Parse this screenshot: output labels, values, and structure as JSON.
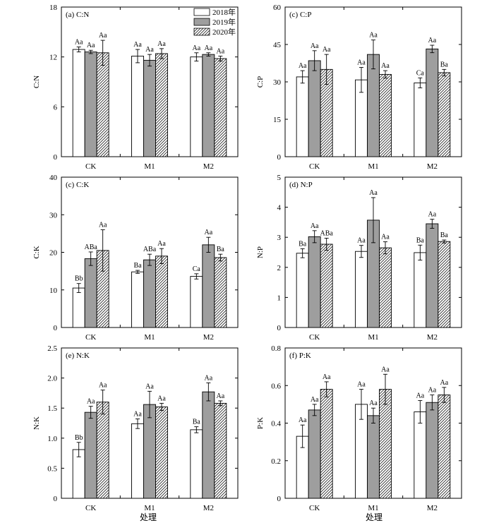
{
  "figure": {
    "legend": [
      "2018年",
      "2019年",
      "2020年"
    ],
    "x_axis_title": "处理"
  },
  "chart_data": [
    {
      "type": "bar",
      "title": "(a) C:N",
      "ylabel": "C:N",
      "categories": [
        "CK",
        "M1",
        "M2"
      ],
      "ylim": [
        0,
        18
      ],
      "yticks": [
        0,
        6,
        12,
        18
      ],
      "series": [
        {
          "name": "2018年",
          "values": [
            12.9,
            12.1,
            12.0
          ],
          "errors": [
            0.3,
            0.8,
            0.5
          ],
          "labels": [
            "Aa",
            "Aa",
            "Aa"
          ]
        },
        {
          "name": "2019年",
          "values": [
            12.6,
            11.6,
            12.3
          ],
          "errors": [
            0.2,
            0.7,
            0.2
          ],
          "labels": [
            "Aa",
            "Aa",
            "Aa"
          ]
        },
        {
          "name": "2020年",
          "values": [
            12.5,
            12.4,
            11.8
          ],
          "errors": [
            1.5,
            0.6,
            0.3
          ],
          "labels": [
            "Aa",
            "Aa",
            "Aa"
          ]
        }
      ]
    },
    {
      "type": "bar",
      "title": "(c) C:P",
      "ylabel": "C:P",
      "categories": [
        "CK",
        "M1",
        "M2"
      ],
      "ylim": [
        0,
        60
      ],
      "yticks": [
        0,
        15,
        30,
        45,
        60
      ],
      "series": [
        {
          "name": "2018年",
          "values": [
            32,
            30.8,
            29.6
          ],
          "errors": [
            2.5,
            5,
            2
          ],
          "labels": [
            "Aa",
            "Aa",
            "Ca"
          ]
        },
        {
          "name": "2019年",
          "values": [
            38.5,
            41,
            43.2
          ],
          "errors": [
            4,
            5.8,
            1.5
          ],
          "labels": [
            "Aa",
            "Aa",
            "Aa"
          ]
        },
        {
          "name": "2020年",
          "values": [
            35,
            33,
            33.7
          ],
          "errors": [
            6,
            1.5,
            1.3
          ],
          "labels": [
            "Aa",
            "Aa",
            "Ba"
          ]
        }
      ]
    },
    {
      "type": "bar",
      "title": "(c) C:K",
      "ylabel": "C:K",
      "categories": [
        "CK",
        "M1",
        "M2"
      ],
      "ylim": [
        0,
        40
      ],
      "yticks": [
        0,
        10,
        20,
        30,
        40
      ],
      "series": [
        {
          "name": "2018年",
          "values": [
            10.5,
            14.8,
            13.6
          ],
          "errors": [
            1.2,
            0.4,
            0.7
          ],
          "labels": [
            "Bb",
            "Ba",
            "Ca"
          ]
        },
        {
          "name": "2019年",
          "values": [
            18.3,
            18.0,
            22.0
          ],
          "errors": [
            1.8,
            1.5,
            2.0
          ],
          "labels": [
            "ABa",
            "ABa",
            "Aa"
          ]
        },
        {
          "name": "2020年",
          "values": [
            20.5,
            19.0,
            18.6
          ],
          "errors": [
            5.5,
            2.0,
            0.9
          ],
          "labels": [
            "Aa",
            "Aa",
            "Ba"
          ]
        }
      ]
    },
    {
      "type": "bar",
      "title": "(d) N:P",
      "ylabel": "N:P",
      "categories": [
        "CK",
        "M1",
        "M2"
      ],
      "ylim": [
        0,
        5
      ],
      "yticks": [
        0,
        1,
        2,
        3,
        4,
        5
      ],
      "series": [
        {
          "name": "2018年",
          "values": [
            2.47,
            2.53,
            2.49
          ],
          "errors": [
            0.15,
            0.2,
            0.25
          ],
          "labels": [
            "Ba",
            "Aa",
            "Ba"
          ]
        },
        {
          "name": "2019年",
          "values": [
            3.02,
            3.57,
            3.45
          ],
          "errors": [
            0.2,
            0.75,
            0.15
          ],
          "labels": [
            "Aa",
            "Aa",
            "Aa"
          ]
        },
        {
          "name": "2020年",
          "values": [
            2.77,
            2.65,
            2.86
          ],
          "errors": [
            0.2,
            0.2,
            0.05
          ],
          "labels": [
            "ABa",
            "Aa",
            "Ba"
          ]
        }
      ]
    },
    {
      "type": "bar",
      "title": "(e) N:K",
      "ylabel": "N:K",
      "categories": [
        "CK",
        "M1",
        "M2"
      ],
      "ylim": [
        0,
        2.5
      ],
      "yticks": [
        0,
        0.5,
        1.0,
        1.5,
        2.0,
        2.5
      ],
      "series": [
        {
          "name": "2018年",
          "values": [
            0.81,
            1.24,
            1.14
          ],
          "errors": [
            0.12,
            0.08,
            0.05
          ],
          "labels": [
            "Bb",
            "Aa",
            "Ba"
          ]
        },
        {
          "name": "2019年",
          "values": [
            1.43,
            1.56,
            1.77
          ],
          "errors": [
            0.1,
            0.22,
            0.15
          ],
          "labels": [
            "Aa",
            "Aa",
            "Aa"
          ]
        },
        {
          "name": "2020年",
          "values": [
            1.6,
            1.52,
            1.58
          ],
          "errors": [
            0.2,
            0.06,
            0.04
          ],
          "labels": [
            "Aa",
            "Aa",
            "Aa"
          ]
        }
      ]
    },
    {
      "type": "bar",
      "title": "(f) P:K",
      "ylabel": "P:K",
      "categories": [
        "CK",
        "M1",
        "M2"
      ],
      "ylim": [
        0,
        0.8
      ],
      "yticks": [
        0,
        0.2,
        0.4,
        0.6,
        0.8
      ],
      "series": [
        {
          "name": "2018年",
          "values": [
            0.33,
            0.5,
            0.46
          ],
          "errors": [
            0.06,
            0.08,
            0.06
          ],
          "labels": [
            "Aa",
            "Aa",
            "Aa"
          ]
        },
        {
          "name": "2019年",
          "values": [
            0.47,
            0.44,
            0.51
          ],
          "errors": [
            0.03,
            0.04,
            0.04
          ],
          "labels": [
            "Aa",
            "Aa",
            "Aa"
          ]
        },
        {
          "name": "2020年",
          "values": [
            0.58,
            0.58,
            0.55
          ],
          "errors": [
            0.04,
            0.08,
            0.04
          ],
          "labels": [
            "Aa",
            "Aa",
            "Aa"
          ]
        }
      ]
    }
  ]
}
